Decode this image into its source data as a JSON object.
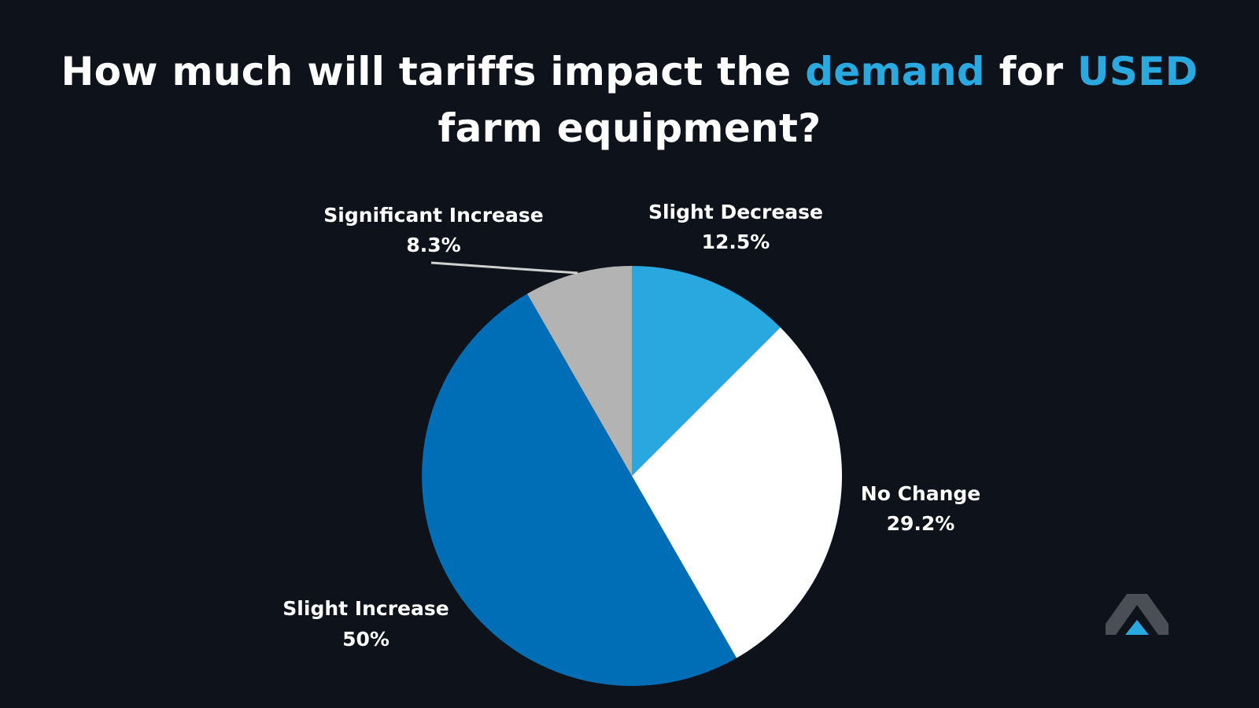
{
  "title": {
    "part1": "How much will tariffs impact the ",
    "highlight1": "demand",
    "part2": " for ",
    "highlight2": "USED",
    "line2": "farm equipment?"
  },
  "colors": {
    "background": "#0e121a",
    "accent": "#2aa8e0",
    "text": "#ffffff"
  },
  "chart_data": {
    "type": "pie",
    "title": "How much will tariffs impact the demand for USED farm equipment?",
    "start": "top",
    "direction": "clockwise",
    "slices": [
      {
        "label": "Slight Decrease",
        "value": 12.5,
        "display": "12.5%",
        "color": "#29a8e0"
      },
      {
        "label": "No Change",
        "value": 29.2,
        "display": "29.2%",
        "color": "#ffffff"
      },
      {
        "label": "Slight Increase",
        "value": 50,
        "display": "50%",
        "color": "#006eb6"
      },
      {
        "label": "Significant Increase",
        "value": 8.3,
        "display": "8.3%",
        "color": "#b3b3b3"
      }
    ]
  },
  "logo": {
    "icon": "chevron-up-logo-icon"
  }
}
